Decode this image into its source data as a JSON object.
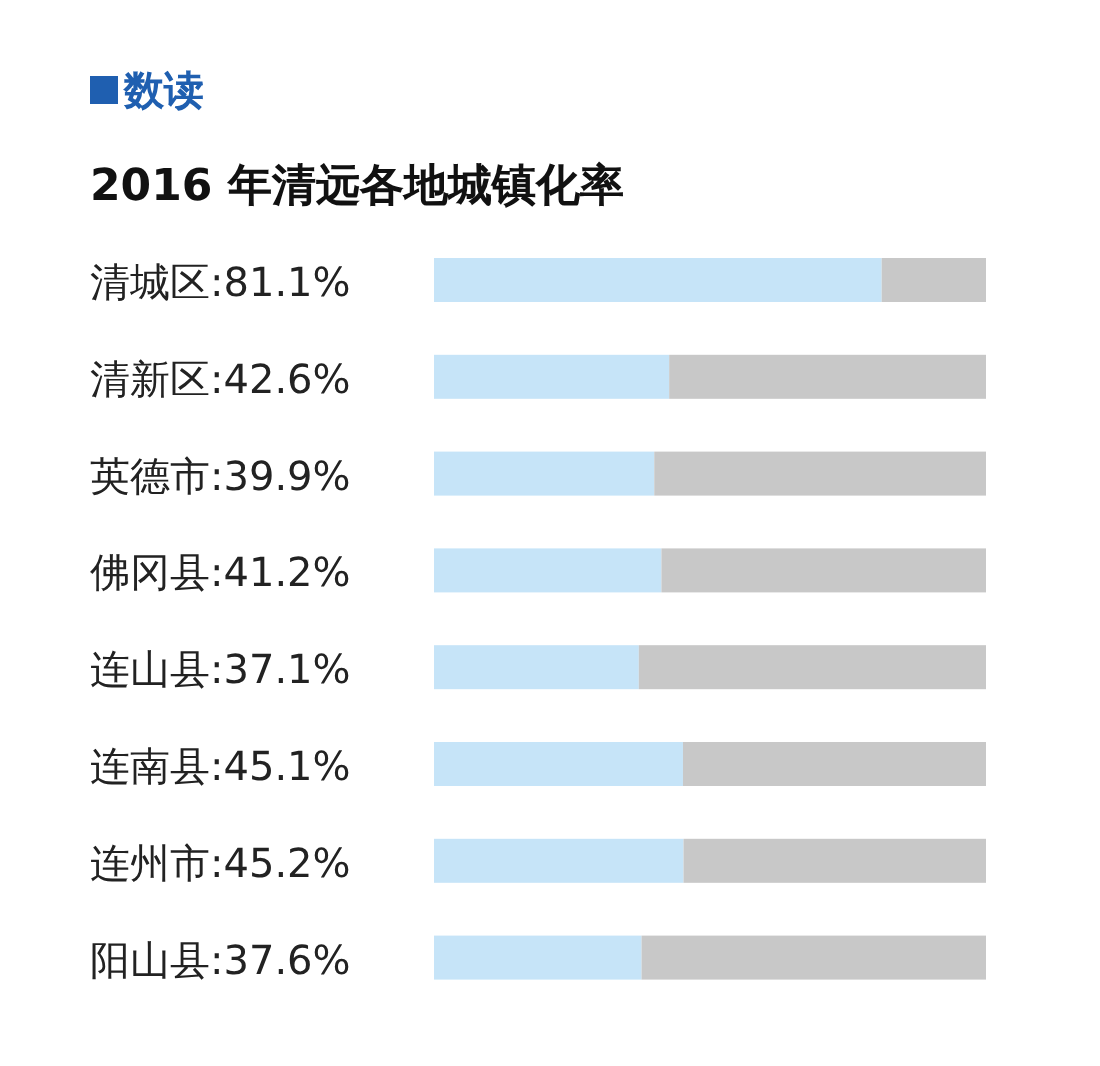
{
  "chart_data": {
    "type": "bar",
    "orientation": "horizontal",
    "stacked": true,
    "title": "数读",
    "subtitle": "2016 年清远各地城镇化率",
    "categories": [
      "清城区",
      "清新区",
      "英德市",
      "佛冈县",
      "连山县",
      "连南县",
      "连州市",
      "阳山县"
    ],
    "xlim": [
      0,
      100
    ],
    "series": [
      {
        "color": "#c6e4f8",
        "values": [
          81.1,
          42.6,
          39.9,
          41.2,
          37.1,
          45.1,
          45.2,
          37.6
        ],
        "value_labels": [
          ":81.1%",
          ":42.6%",
          ":39.9%",
          ":41.2%",
          ":37.1%",
          ":45.1%",
          ":45.2%",
          ":37.6%"
        ]
      },
      {
        "color": "#c8c8c8",
        "values": [
          18.9,
          57.4,
          60.1,
          58.8,
          62.9,
          54.9,
          54.8,
          62.4
        ]
      }
    ]
  }
}
